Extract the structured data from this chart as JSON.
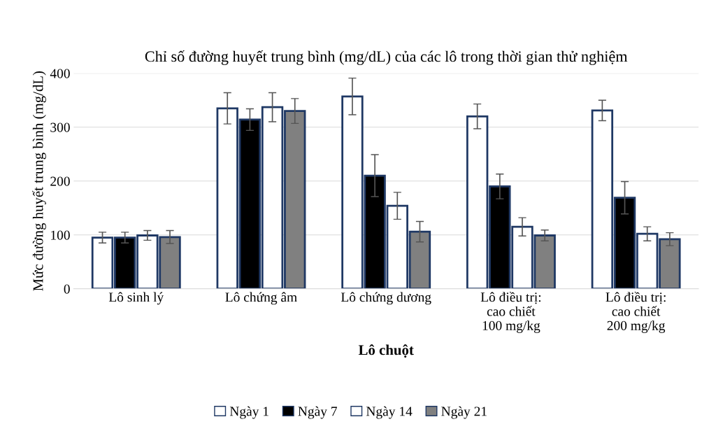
{
  "chart_data": {
    "type": "bar",
    "title": "Chỉ số đường huyết trung bình (mg/dL) của các lô trong thời gian thử nghiệm",
    "xlabel": "Lô chuột",
    "ylabel": "Mức đường huyết trung bình (mg/dL)",
    "categories": [
      "Lô sinh lý",
      "Lô chứng âm",
      "Lô chứng dương",
      "Lô điều trị:\ncao chiết\n100 mg/kg",
      "Lô điều trị:\ncao chiết\n200 mg/kg"
    ],
    "series": [
      {
        "name": "Ngày 1",
        "color": "#ffffff",
        "values": [
          95,
          335,
          357,
          320,
          331
        ],
        "errors": [
          10,
          29,
          34,
          23,
          19
        ]
      },
      {
        "name": "Ngày 7",
        "color": "#000000",
        "values": [
          95,
          314,
          210,
          190,
          169
        ],
        "errors": [
          10,
          20,
          39,
          23,
          30
        ]
      },
      {
        "name": "Ngày 14",
        "color": "#ffffff",
        "values": [
          99,
          337,
          154,
          115,
          102
        ],
        "errors": [
          9,
          27,
          25,
          17,
          13
        ]
      },
      {
        "name": "Ngày 21",
        "color": "#808080",
        "values": [
          96,
          330,
          106,
          99,
          92
        ],
        "errors": [
          12,
          23,
          19,
          10,
          12
        ]
      }
    ],
    "ylim": [
      0,
      400
    ],
    "yticks": [
      0,
      100,
      200,
      300,
      400
    ],
    "grid": "y",
    "legend": "bottom"
  }
}
